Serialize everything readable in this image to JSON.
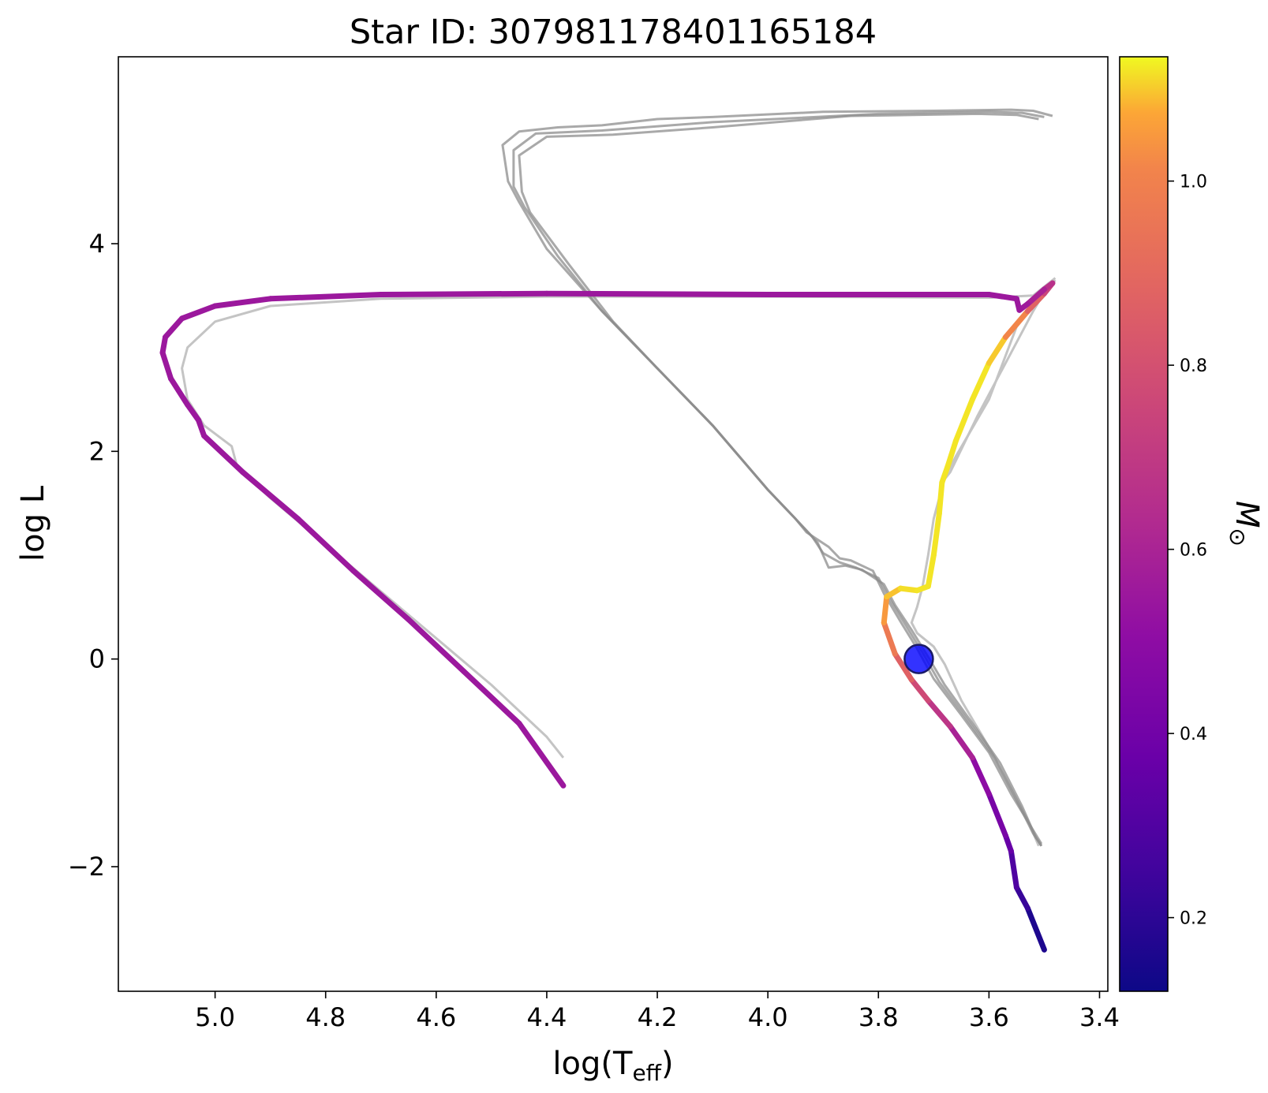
{
  "chart_data": {
    "type": "line",
    "title": "Star ID: 3079811784011651​84",
    "title_text": "Star ID: 307981178401165184",
    "xlabel_main": "log(T",
    "xlabel_sub": "eff",
    "xlabel_end": ")",
    "ylabel_main": "log L",
    "colorbar_label": "M",
    "colorbar_label_sub": "⊙",
    "xlim": [
      5.175,
      3.385
    ],
    "ylim": [
      -3.2,
      5.8
    ],
    "x_inverted": true,
    "x_ticks": [
      5.0,
      4.8,
      4.6,
      4.4,
      4.2,
      4.0,
      3.8,
      3.6,
      3.4
    ],
    "x_tick_labels": [
      "5.0",
      "4.8",
      "4.6",
      "4.4",
      "4.2",
      "4.0",
      "3.8",
      "3.6",
      "3.4"
    ],
    "y_ticks": [
      -2,
      0,
      2,
      4
    ],
    "y_tick_labels": [
      "−2",
      "0",
      "2",
      "4"
    ],
    "colorbar": {
      "colormap": "plasma",
      "range": [
        0.12,
        1.135
      ],
      "ticks": [
        0.2,
        0.4,
        0.6,
        0.8,
        1.0
      ],
      "tick_labels": [
        "0.2",
        "0.4",
        "0.6",
        "0.8",
        "1.0"
      ]
    },
    "grid": false,
    "reference_tracks_color": "#8c8c8c",
    "reference_tracks": [
      [
        [
          3.485,
          5.23
        ],
        [
          3.52,
          5.28
        ],
        [
          3.56,
          5.29
        ],
        [
          3.7,
          5.28
        ],
        [
          3.9,
          5.27
        ],
        [
          4.1,
          5.22
        ],
        [
          4.2,
          5.2
        ],
        [
          4.3,
          5.14
        ],
        [
          4.38,
          5.12
        ],
        [
          4.45,
          5.08
        ],
        [
          4.48,
          4.95
        ],
        [
          4.47,
          4.6
        ],
        [
          4.45,
          4.4
        ],
        [
          4.4,
          3.95
        ],
        [
          4.3,
          3.35
        ],
        [
          4.2,
          2.8
        ],
        [
          4.1,
          2.25
        ],
        [
          4.0,
          1.63
        ],
        [
          3.95,
          1.35
        ],
        [
          3.93,
          1.22
        ],
        [
          3.89,
          1.08
        ],
        [
          3.87,
          0.97
        ],
        [
          3.85,
          0.95
        ],
        [
          3.81,
          0.85
        ],
        [
          3.79,
          0.63
        ],
        [
          3.76,
          0.36
        ],
        [
          3.73,
          0.1
        ],
        [
          3.7,
          -0.19
        ],
        [
          3.65,
          -0.54
        ],
        [
          3.6,
          -0.9
        ],
        [
          3.56,
          -1.3
        ],
        [
          3.52,
          -1.65
        ],
        [
          3.505,
          -1.78
        ]
      ],
      [
        [
          3.5,
          5.22
        ],
        [
          3.54,
          5.26
        ],
        [
          3.6,
          5.27
        ],
        [
          3.8,
          5.25
        ],
        [
          4.1,
          5.17
        ],
        [
          4.3,
          5.09
        ],
        [
          4.42,
          5.06
        ],
        [
          4.46,
          4.9
        ],
        [
          4.46,
          4.55
        ],
        [
          4.44,
          4.35
        ],
        [
          4.38,
          3.88
        ],
        [
          4.3,
          3.35
        ],
        [
          4.2,
          2.8
        ],
        [
          4.1,
          2.25
        ],
        [
          4.0,
          1.63
        ],
        [
          3.95,
          1.35
        ],
        [
          3.92,
          1.18
        ],
        [
          3.9,
          1.02
        ],
        [
          3.87,
          0.93
        ],
        [
          3.84,
          0.88
        ],
        [
          3.8,
          0.78
        ],
        [
          3.78,
          0.58
        ],
        [
          3.75,
          0.32
        ],
        [
          3.72,
          0.06
        ],
        [
          3.69,
          -0.22
        ],
        [
          3.64,
          -0.58
        ],
        [
          3.59,
          -0.95
        ],
        [
          3.55,
          -1.36
        ],
        [
          3.52,
          -1.68
        ],
        [
          3.505,
          -1.8
        ]
      ],
      [
        [
          3.51,
          5.2
        ],
        [
          3.55,
          5.24
        ],
        [
          3.62,
          5.25
        ],
        [
          3.85,
          5.23
        ],
        [
          4.1,
          5.12
        ],
        [
          4.28,
          5.05
        ],
        [
          4.4,
          5.03
        ],
        [
          4.45,
          4.85
        ],
        [
          4.445,
          4.5
        ],
        [
          4.43,
          4.3
        ],
        [
          4.36,
          3.8
        ],
        [
          4.28,
          3.25
        ],
        [
          4.2,
          2.8
        ],
        [
          4.1,
          2.25
        ],
        [
          4.0,
          1.63
        ],
        [
          3.95,
          1.35
        ],
        [
          3.91,
          1.12
        ],
        [
          3.89,
          0.88
        ],
        [
          3.86,
          0.9
        ],
        [
          3.83,
          0.86
        ],
        [
          3.79,
          0.72
        ],
        [
          3.77,
          0.52
        ],
        [
          3.74,
          0.28
        ],
        [
          3.71,
          0.02
        ],
        [
          3.68,
          -0.25
        ],
        [
          3.63,
          -0.62
        ],
        [
          3.58,
          -1.0
        ],
        [
          3.54,
          -1.42
        ],
        [
          3.515,
          -1.72
        ],
        [
          3.505,
          -1.8
        ]
      ]
    ],
    "faint_tracks_color": "#c4c4c4",
    "faint_tracks": [
      [
        [
          3.48,
          3.67
        ],
        [
          3.52,
          3.5
        ],
        [
          3.6,
          3.48
        ],
        [
          4.0,
          3.49
        ],
        [
          4.4,
          3.49
        ],
        [
          4.7,
          3.47
        ],
        [
          4.9,
          3.4
        ],
        [
          5.0,
          3.25
        ],
        [
          5.05,
          3.0
        ],
        [
          5.06,
          2.8
        ],
        [
          5.05,
          2.5
        ],
        [
          5.02,
          2.25
        ],
        [
          4.97,
          2.05
        ],
        [
          4.96,
          1.85
        ],
        [
          4.9,
          1.55
        ],
        [
          4.8,
          1.1
        ],
        [
          4.7,
          0.65
        ],
        [
          4.6,
          0.2
        ],
        [
          4.5,
          -0.25
        ],
        [
          4.4,
          -0.75
        ],
        [
          4.37,
          -0.95
        ]
      ],
      [
        [
          3.48,
          3.65
        ],
        [
          3.55,
          3.2
        ],
        [
          3.6,
          2.5
        ],
        [
          3.66,
          1.95
        ],
        [
          3.68,
          1.75
        ],
        [
          3.7,
          1.35
        ],
        [
          3.71,
          1.0
        ],
        [
          3.72,
          0.7
        ],
        [
          3.73,
          0.5
        ],
        [
          3.74,
          0.35
        ],
        [
          3.73,
          0.25
        ],
        [
          3.7,
          0.12
        ],
        [
          3.68,
          -0.05
        ],
        [
          3.65,
          -0.4
        ],
        [
          3.6,
          -0.85
        ],
        [
          3.56,
          -1.25
        ],
        [
          3.53,
          -1.55
        ],
        [
          3.51,
          -1.8
        ]
      ],
      [
        [
          3.49,
          3.62
        ],
        [
          3.52,
          3.35
        ],
        [
          3.56,
          2.95
        ],
        [
          3.62,
          2.35
        ],
        [
          3.67,
          1.8
        ],
        [
          3.685,
          1.7
        ]
      ]
    ],
    "main_track": [
      {
        "x": 3.5,
        "y": -2.8,
        "m": 0.12
      },
      {
        "x": 3.53,
        "y": -2.4,
        "m": 0.2
      },
      {
        "x": 3.55,
        "y": -2.2,
        "m": 0.26
      },
      {
        "x": 3.56,
        "y": -1.85,
        "m": 0.33
      },
      {
        "x": 3.57,
        "y": -1.7,
        "m": 0.4
      },
      {
        "x": 3.6,
        "y": -1.3,
        "m": 0.45
      },
      {
        "x": 3.63,
        "y": -0.95,
        "m": 0.55
      },
      {
        "x": 3.67,
        "y": -0.65,
        "m": 0.64
      },
      {
        "x": 3.71,
        "y": -0.4,
        "m": 0.72
      },
      {
        "x": 3.74,
        "y": -0.2,
        "m": 0.82
      },
      {
        "x": 3.77,
        "y": 0.05,
        "m": 0.92
      },
      {
        "x": 3.79,
        "y": 0.35,
        "m": 1.02
      },
      {
        "x": 3.785,
        "y": 0.6,
        "m": 1.08
      },
      {
        "x": 3.76,
        "y": 0.68,
        "m": 1.11
      },
      {
        "x": 3.73,
        "y": 0.66,
        "m": 1.12
      },
      {
        "x": 3.71,
        "y": 0.7,
        "m": 1.12
      },
      {
        "x": 3.7,
        "y": 1.0,
        "m": 1.12
      },
      {
        "x": 3.69,
        "y": 1.4,
        "m": 1.12
      },
      {
        "x": 3.685,
        "y": 1.7,
        "m": 1.12
      },
      {
        "x": 3.675,
        "y": 1.85,
        "m": 1.12
      },
      {
        "x": 3.66,
        "y": 2.1,
        "m": 1.12
      },
      {
        "x": 3.63,
        "y": 2.5,
        "m": 1.12
      },
      {
        "x": 3.6,
        "y": 2.85,
        "m": 1.12
      },
      {
        "x": 3.57,
        "y": 3.1,
        "m": 1.08
      },
      {
        "x": 3.53,
        "y": 3.35,
        "m": 0.95
      },
      {
        "x": 3.5,
        "y": 3.52,
        "m": 0.8
      },
      {
        "x": 3.485,
        "y": 3.62,
        "m": 0.7
      },
      {
        "x": 3.5,
        "y": 3.56,
        "m": 0.62
      },
      {
        "x": 3.53,
        "y": 3.42,
        "m": 0.57
      },
      {
        "x": 3.545,
        "y": 3.36,
        "m": 0.55
      },
      {
        "x": 3.55,
        "y": 3.47,
        "m": 0.55
      },
      {
        "x": 3.6,
        "y": 3.51,
        "m": 0.55
      },
      {
        "x": 3.8,
        "y": 3.51,
        "m": 0.55
      },
      {
        "x": 4.0,
        "y": 3.51,
        "m": 0.55
      },
      {
        "x": 4.4,
        "y": 3.52,
        "m": 0.55
      },
      {
        "x": 4.7,
        "y": 3.51,
        "m": 0.55
      },
      {
        "x": 4.9,
        "y": 3.47,
        "m": 0.55
      },
      {
        "x": 5.0,
        "y": 3.4,
        "m": 0.55
      },
      {
        "x": 5.06,
        "y": 3.28,
        "m": 0.55
      },
      {
        "x": 5.09,
        "y": 3.1,
        "m": 0.55
      },
      {
        "x": 5.095,
        "y": 2.95,
        "m": 0.55
      },
      {
        "x": 5.08,
        "y": 2.7,
        "m": 0.55
      },
      {
        "x": 5.05,
        "y": 2.45,
        "m": 0.55
      },
      {
        "x": 5.03,
        "y": 2.3,
        "m": 0.55
      },
      {
        "x": 5.02,
        "y": 2.15,
        "m": 0.55
      },
      {
        "x": 4.95,
        "y": 1.8,
        "m": 0.55
      },
      {
        "x": 4.85,
        "y": 1.35,
        "m": 0.55
      },
      {
        "x": 4.75,
        "y": 0.85,
        "m": 0.55
      },
      {
        "x": 4.65,
        "y": 0.38,
        "m": 0.55
      },
      {
        "x": 4.55,
        "y": -0.12,
        "m": 0.55
      },
      {
        "x": 4.45,
        "y": -0.62,
        "m": 0.55
      },
      {
        "x": 4.37,
        "y": -1.22,
        "m": 0.55
      }
    ],
    "marker": {
      "x": 3.727,
      "y": 0.0,
      "color": "#0000ff",
      "edge_color": "#1a1a66"
    }
  }
}
